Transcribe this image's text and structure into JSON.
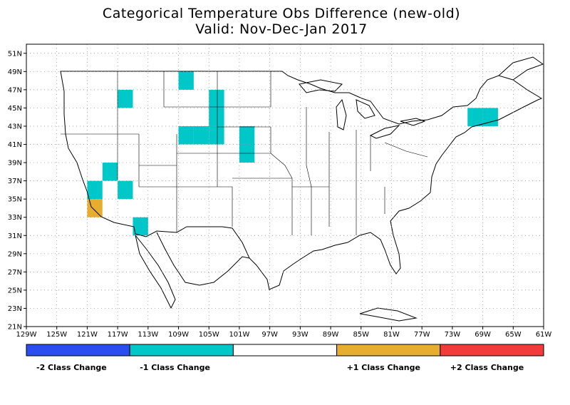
{
  "title_line1": "Categorical Temperature Obs Difference (new-old)",
  "title_line2": "Valid: Nov-Dec-Jan 2017",
  "lon_ticks": [
    "129W",
    "125W",
    "121W",
    "117W",
    "113W",
    "109W",
    "105W",
    "101W",
    "97W",
    "93W",
    "89W",
    "85W",
    "81W",
    "77W",
    "73W",
    "69W",
    "65W",
    "61W"
  ],
  "lat_ticks": [
    "21N",
    "23N",
    "25N",
    "27N",
    "29N",
    "31N",
    "33N",
    "35N",
    "37N",
    "39N",
    "41N",
    "43N",
    "45N",
    "47N",
    "49N",
    "51N"
  ],
  "colors": {
    "minus2": "#2a4ef0",
    "minus1": "#00c8c8",
    "zero": "#ffffff",
    "plus1": "#e6ad2e",
    "plus2": "#f23c3c"
  },
  "legend": [
    {
      "label": "-2 Class Change",
      "color_key": "minus2"
    },
    {
      "label": "-1 Class Change",
      "color_key": "minus1"
    },
    {
      "label": "",
      "color_key": "zero"
    },
    {
      "label": "+1 Class Change",
      "color_key": "plus1"
    },
    {
      "label": "+2 Class Change",
      "color_key": "plus2"
    }
  ],
  "grid_cells": [
    {
      "lon_w": 109,
      "lat_n": 47,
      "class": "minus1"
    },
    {
      "lon_w": 117,
      "lat_n": 45,
      "class": "minus1"
    },
    {
      "lon_w": 105,
      "lat_n": 45,
      "class": "minus1"
    },
    {
      "lon_w": 105,
      "lat_n": 43,
      "class": "minus1"
    },
    {
      "lon_w": 109,
      "lat_n": 41,
      "class": "minus1"
    },
    {
      "lon_w": 107,
      "lat_n": 41,
      "class": "minus1"
    },
    {
      "lon_w": 105,
      "lat_n": 41,
      "class": "minus1"
    },
    {
      "lon_w": 101,
      "lat_n": 41,
      "class": "minus1"
    },
    {
      "lon_w": 101,
      "lat_n": 39,
      "class": "minus1"
    },
    {
      "lon_w": 119,
      "lat_n": 37,
      "class": "minus1"
    },
    {
      "lon_w": 121,
      "lat_n": 35,
      "class": "minus1"
    },
    {
      "lon_w": 117,
      "lat_n": 35,
      "class": "minus1"
    },
    {
      "lon_w": 121,
      "lat_n": 33,
      "class": "plus1"
    },
    {
      "lon_w": 115,
      "lat_n": 31,
      "class": "minus1"
    },
    {
      "lon_w": 71,
      "lat_n": 43,
      "class": "minus1"
    },
    {
      "lon_w": 69,
      "lat_n": 43,
      "class": "minus1"
    }
  ]
}
